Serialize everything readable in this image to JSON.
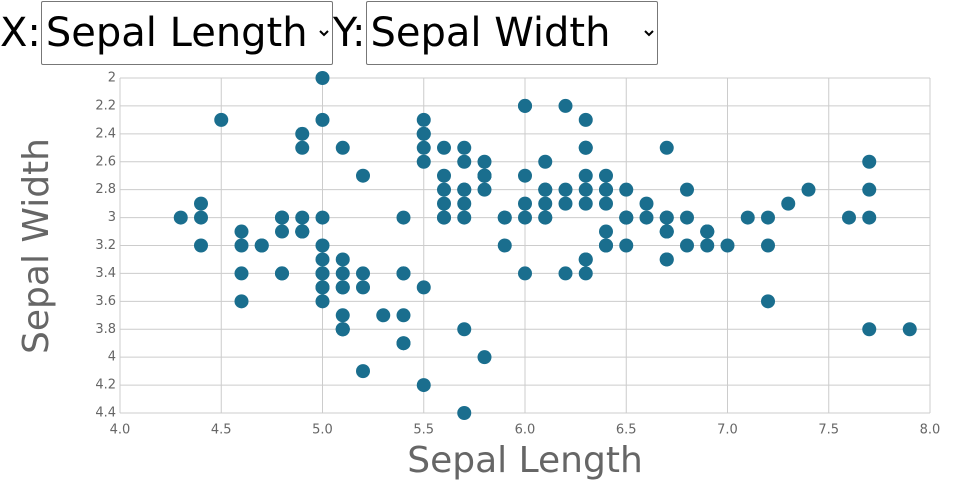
{
  "controls": {
    "x_label": "X:",
    "x_select": "Sepal Length",
    "y_label": "Y:",
    "y_select": "Sepal Width"
  },
  "chart_data": {
    "type": "scatter",
    "xlabel": "Sepal Length",
    "ylabel": "Sepal Width",
    "color": "#1a6e8e",
    "x": [
      5.1,
      4.9,
      4.7,
      4.6,
      5.0,
      5.4,
      4.6,
      5.0,
      4.4,
      4.9,
      5.4,
      4.8,
      4.8,
      4.3,
      5.8,
      5.7,
      5.4,
      5.1,
      5.7,
      5.1,
      5.4,
      5.1,
      4.6,
      5.1,
      4.8,
      5.0,
      5.0,
      5.2,
      5.2,
      4.7,
      4.8,
      5.4,
      5.2,
      5.5,
      4.9,
      5.0,
      5.5,
      4.9,
      4.4,
      5.1,
      5.0,
      4.5,
      4.4,
      5.0,
      5.1,
      4.8,
      5.1,
      4.6,
      5.3,
      5.0,
      7.0,
      6.4,
      6.9,
      5.5,
      6.5,
      5.7,
      6.3,
      4.9,
      6.6,
      5.2,
      5.0,
      5.9,
      6.0,
      6.1,
      5.6,
      6.7,
      5.6,
      5.8,
      6.2,
      5.6,
      5.9,
      6.1,
      6.3,
      6.1,
      6.4,
      6.6,
      6.8,
      6.7,
      6.0,
      5.7,
      5.5,
      5.5,
      5.8,
      6.0,
      5.4,
      6.0,
      6.7,
      6.3,
      5.6,
      5.5,
      5.5,
      6.1,
      5.8,
      5.0,
      5.6,
      5.7,
      5.7,
      6.2,
      5.1,
      5.7,
      6.3,
      5.8,
      7.1,
      6.3,
      6.5,
      7.6,
      4.9,
      7.3,
      6.7,
      7.2,
      6.5,
      6.4,
      6.8,
      5.7,
      5.8,
      6.4,
      6.5,
      7.7,
      7.7,
      6.0,
      6.9,
      5.6,
      7.7,
      6.3,
      6.7,
      7.2,
      6.2,
      6.1,
      6.4,
      7.2,
      7.4,
      7.9,
      6.4,
      6.3,
      6.1,
      7.7,
      6.3,
      6.4,
      6.0,
      6.9,
      6.7,
      6.9,
      5.8,
      6.8,
      6.7,
      6.7,
      6.3,
      6.5,
      6.2,
      5.9
    ],
    "y": [
      3.5,
      3.0,
      3.2,
      3.1,
      3.6,
      3.9,
      3.4,
      3.4,
      2.9,
      3.1,
      3.7,
      3.4,
      3.0,
      3.0,
      4.0,
      4.4,
      3.9,
      3.5,
      3.8,
      3.8,
      3.4,
      3.7,
      3.6,
      3.3,
      3.4,
      3.0,
      3.4,
      3.5,
      3.4,
      3.2,
      3.1,
      3.4,
      4.1,
      4.2,
      3.1,
      3.2,
      3.5,
      3.1,
      3.0,
      3.4,
      3.5,
      2.3,
      3.2,
      3.5,
      3.8,
      3.0,
      3.8,
      3.2,
      3.7,
      3.3,
      3.2,
      3.2,
      3.1,
      2.3,
      2.8,
      2.8,
      3.3,
      2.4,
      2.9,
      2.7,
      2.0,
      3.0,
      2.2,
      2.9,
      2.9,
      3.1,
      3.0,
      2.7,
      2.2,
      2.5,
      3.2,
      2.8,
      2.5,
      2.8,
      2.9,
      3.0,
      2.8,
      3.0,
      2.9,
      2.6,
      2.4,
      2.4,
      2.7,
      2.7,
      3.0,
      3.4,
      3.1,
      2.3,
      3.0,
      2.5,
      2.6,
      3.0,
      2.6,
      2.3,
      2.7,
      3.0,
      2.9,
      2.9,
      2.5,
      2.8,
      3.3,
      2.7,
      3.0,
      2.9,
      3.0,
      3.0,
      2.5,
      2.9,
      2.5,
      3.6,
      3.2,
      2.7,
      3.0,
      2.5,
      2.8,
      3.2,
      3.0,
      3.8,
      2.6,
      2.2,
      3.2,
      2.8,
      2.8,
      2.7,
      3.3,
      3.2,
      2.8,
      3.0,
      2.8,
      3.0,
      2.8,
      3.8,
      2.8,
      2.8,
      2.6,
      3.0,
      3.4,
      3.1,
      3.0,
      3.1,
      3.1,
      3.1,
      2.7,
      3.2,
      3.3,
      3.0,
      2.5,
      3.0,
      3.4,
      3.0
    ],
    "xlim": [
      4,
      8
    ],
    "xticks": [
      {
        "value": 4,
        "label": "4.0"
      },
      {
        "value": 4.5,
        "label": "4.5"
      },
      {
        "value": 5,
        "label": "5.0"
      },
      {
        "value": 5.5,
        "label": "5.5"
      },
      {
        "value": 6,
        "label": "6.0"
      },
      {
        "value": 6.5,
        "label": "6.5"
      },
      {
        "value": 7,
        "label": "7.0"
      },
      {
        "value": 7.5,
        "label": "7.5"
      },
      {
        "value": 8,
        "label": "8.0"
      }
    ],
    "ylim": [
      2,
      4.4
    ],
    "y_inverted": true,
    "yticks": [
      2,
      2.2,
      2.4,
      2.6,
      2.8,
      3,
      3.2,
      3.4,
      3.6,
      3.8,
      4,
      4.2,
      4.4
    ],
    "grid": true
  }
}
